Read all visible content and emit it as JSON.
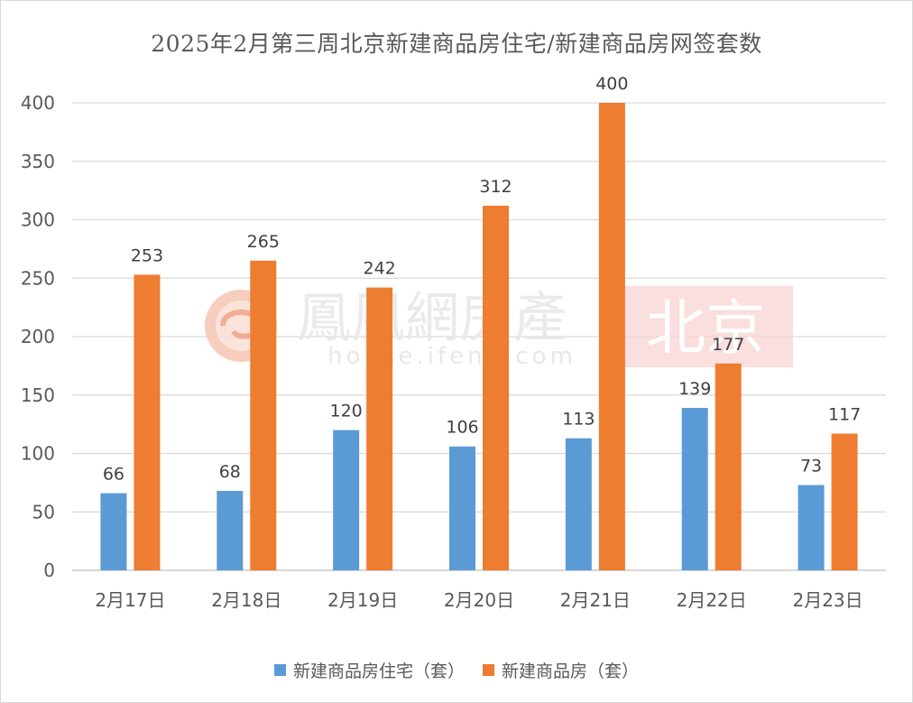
{
  "chart_data": {
    "type": "bar",
    "title": "2025年2月第三周北京新建商品房住宅/新建商品房网签套数",
    "xlabel": "",
    "ylabel": "",
    "categories": [
      "2月17日",
      "2月18日",
      "2月19日",
      "2月20日",
      "2月21日",
      "2月22日",
      "2月23日"
    ],
    "series": [
      {
        "name": "新建商品房住宅（套）",
        "color": "#5b9bd5",
        "values": [
          66,
          68,
          120,
          106,
          113,
          139,
          73
        ]
      },
      {
        "name": "新建商品房（套）",
        "color": "#ed7d31",
        "values": [
          253,
          265,
          242,
          312,
          400,
          177,
          117
        ]
      }
    ],
    "ylim": [
      0,
      400
    ],
    "yticks": [
      0,
      50,
      100,
      150,
      200,
      250,
      300,
      350,
      400
    ],
    "grid": true,
    "legend_position": "bottom",
    "data_labels": true
  },
  "watermark": {
    "brand": "鳳凰網房產",
    "url": "house.ifeng.com",
    "city": "北京"
  }
}
